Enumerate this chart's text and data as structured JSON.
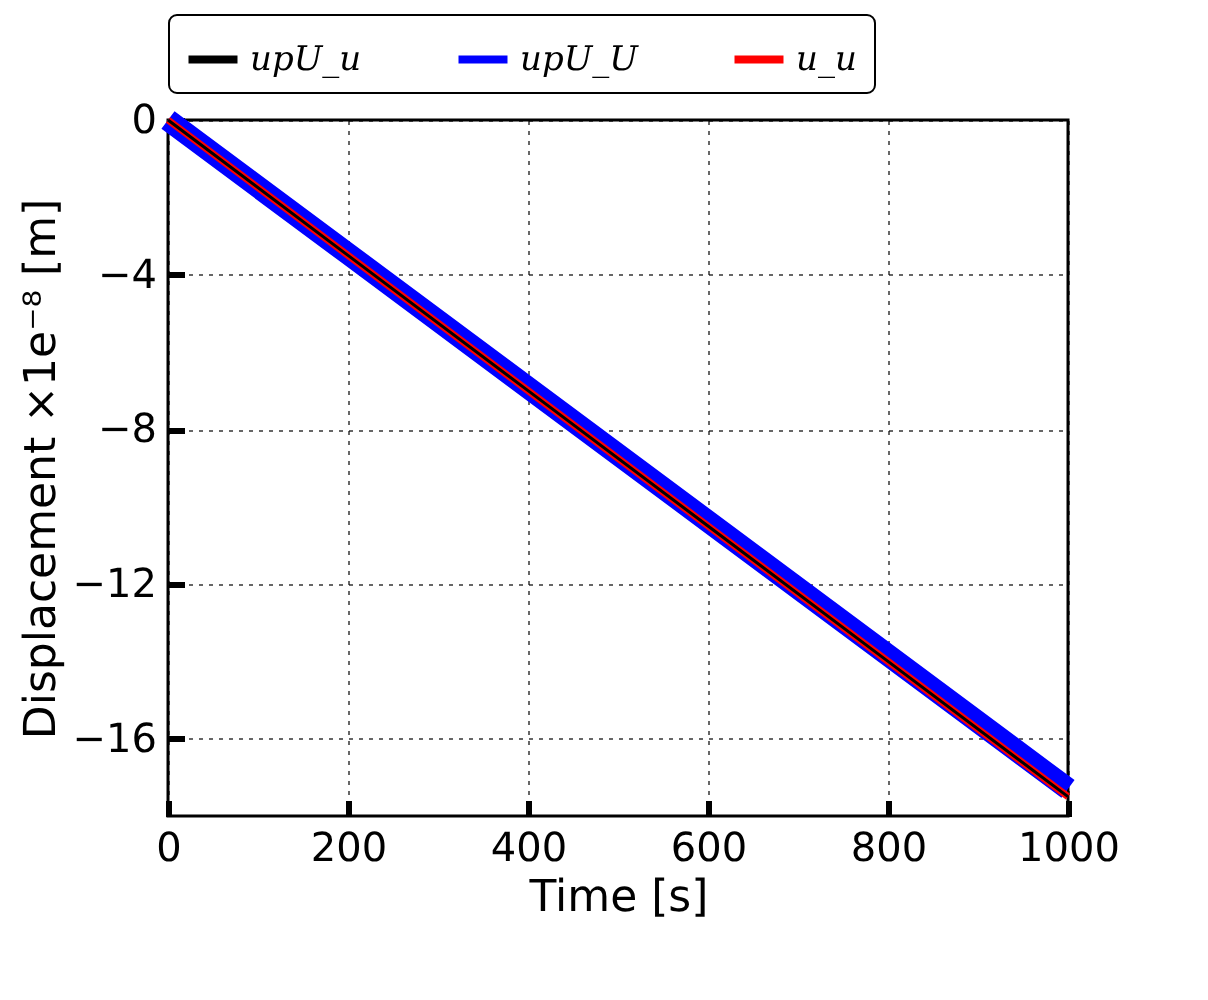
{
  "chart_data": {
    "type": "line",
    "xlabel": "Time [s]",
    "ylabel": "Displacement ×1e⁻⁸ [m]",
    "xlim": [
      0,
      1000
    ],
    "xticks": [
      0,
      200,
      400,
      600,
      800,
      1000
    ],
    "ylim": [
      -18,
      0
    ],
    "yticks": [
      0,
      -4,
      -8,
      -12,
      -16
    ],
    "grid": true,
    "legend": "top",
    "line_style": "solid",
    "marker": "none",
    "series": [
      {
        "name": "upU_u",
        "color": "#000000",
        "x": [
          0,
          200,
          400,
          600,
          800,
          1000
        ],
        "values": [
          0,
          -3.5,
          -7,
          -10.5,
          -14,
          -17.5
        ]
      },
      {
        "name": "upU_U",
        "color": "#0000ff",
        "x": [
          0,
          200,
          400,
          600,
          800,
          1000
        ],
        "values": [
          0,
          -3.46,
          -6.92,
          -10.38,
          -13.84,
          -17.3
        ]
      },
      {
        "name": "u_u",
        "color": "#ff0000",
        "x": [
          0,
          200,
          400,
          600,
          800,
          1000
        ],
        "values": [
          0,
          -3.5,
          -7,
          -10.5,
          -14,
          -17.5
        ]
      }
    ]
  }
}
